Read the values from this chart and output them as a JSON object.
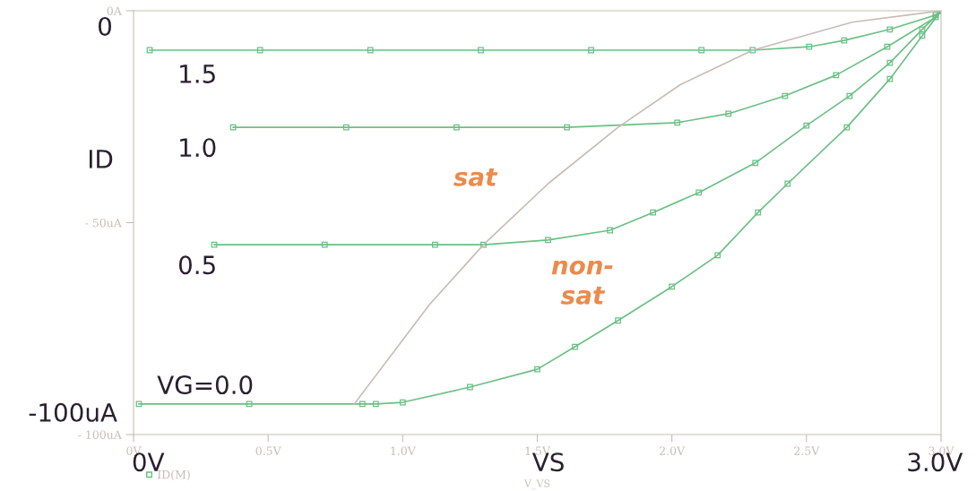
{
  "chart_data": {
    "type": "line",
    "xlabel": "V_VS",
    "marker": "square",
    "grid": false,
    "legend": "bottom left",
    "xlim": [
      0,
      3.0
    ],
    "ylim": [
      -100,
      0
    ],
    "xticks": [
      {
        "value": 0,
        "label": "0V"
      },
      {
        "value": 0.5,
        "label": "0.5V"
      },
      {
        "value": 1.0,
        "label": "1.0V"
      },
      {
        "value": 1.5,
        "label": "1.5V"
      },
      {
        "value": 2.0,
        "label": "2.0V"
      },
      {
        "value": 2.5,
        "label": "2.5V"
      },
      {
        "value": 3.0,
        "label": "3.0V"
      }
    ],
    "yticks": [
      {
        "value": 0,
        "label": "0A"
      },
      {
        "value": -50,
        "label": "- 50uA"
      },
      {
        "value": -100,
        "label": "- 100uA"
      }
    ],
    "series": [
      {
        "name": "ID(M)",
        "color": "#6cbf84",
        "x": [
          0.06,
          0.47,
          0.88,
          1.29,
          1.7,
          2.11,
          2.3,
          2.51,
          2.64,
          2.81,
          2.98,
          3.0
        ],
        "values": [
          -9.3,
          -9.3,
          -9.3,
          -9.3,
          -9.3,
          -9.3,
          -9.3,
          -8.5,
          -7.0,
          -4.4,
          -1.0,
          0
        ]
      },
      {
        "color": "#6cbf84",
        "x": [
          0.37,
          0.79,
          1.2,
          1.61,
          2.02,
          2.21,
          2.42,
          2.61,
          2.8,
          2.98,
          3.0
        ],
        "values": [
          -27.5,
          -27.5,
          -27.5,
          -27.5,
          -26.4,
          -24.3,
          -20.1,
          -15.2,
          -8.5,
          -1.5,
          0
        ]
      },
      {
        "color": "#6cbf84",
        "x": [
          0.3,
          0.71,
          1.12,
          1.3,
          1.54,
          1.77,
          1.93,
          2.1,
          2.31,
          2.5,
          2.66,
          2.81,
          2.93,
          3.0
        ],
        "values": [
          -55.2,
          -55.2,
          -55.2,
          -55.2,
          -54.1,
          -51.8,
          -47.6,
          -42.9,
          -35.9,
          -27.1,
          -20.1,
          -12.3,
          -4.4,
          0
        ]
      },
      {
        "color": "#6cbf84",
        "x": [
          0.02,
          0.43,
          0.85,
          0.9,
          1.0,
          1.25,
          1.5,
          1.64,
          1.8,
          2.0,
          2.17,
          2.32,
          2.43,
          2.65,
          2.81,
          2.93,
          3.0
        ],
        "values": [
          -92.8,
          -92.8,
          -92.8,
          -92.8,
          -92.4,
          -88.8,
          -84.6,
          -79.3,
          -73.1,
          -65.1,
          -57.7,
          -47.6,
          -40.8,
          -27.5,
          -16.1,
          -5.9,
          0
        ]
      },
      {
        "color": "#c8bcb4",
        "marker": "none",
        "x": [
          0.82,
          1.1,
          1.3,
          1.54,
          1.8,
          2.03,
          2.3,
          2.67,
          3.0
        ],
        "values": [
          -92.8,
          -69.3,
          -55.2,
          -40.8,
          -27.5,
          -17.5,
          -9.3,
          -2.7,
          0
        ]
      }
    ],
    "annotations": [
      "1.5",
      "1.0",
      "0.5",
      "VG=0.0",
      "sat",
      "non-\nsat",
      "0",
      "ID",
      "-100uA",
      "0V",
      "VS",
      "3.0V"
    ]
  }
}
